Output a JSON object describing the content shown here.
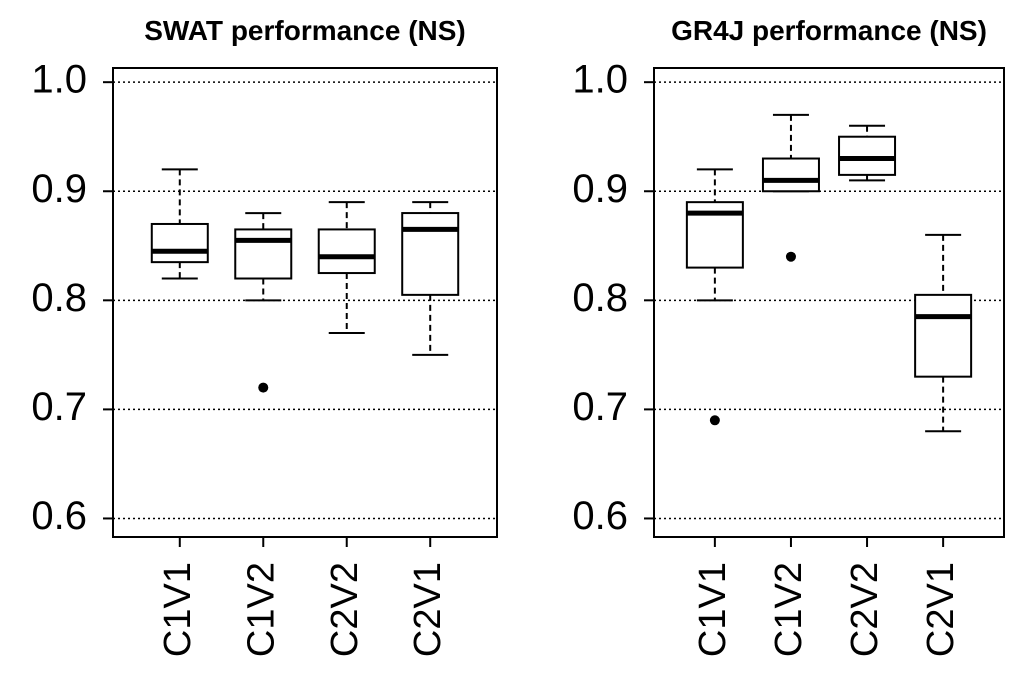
{
  "chart_data": [
    {
      "type": "box",
      "title": "SWAT performance (NS)",
      "categories": [
        "C1V1",
        "C1V2",
        "C2V2",
        "C2V1"
      ],
      "whisker_low": [
        0.82,
        0.8,
        0.77,
        0.75
      ],
      "q1": [
        0.835,
        0.82,
        0.825,
        0.805
      ],
      "median": [
        0.845,
        0.855,
        0.84,
        0.865
      ],
      "q3": [
        0.87,
        0.865,
        0.865,
        0.88
      ],
      "whisker_high": [
        0.92,
        0.88,
        0.89,
        0.89
      ],
      "outliers": [
        [],
        [
          0.72
        ],
        [],
        []
      ],
      "color": "#000000",
      "ylim": [
        0.583,
        1.013
      ],
      "yticks": [
        {
          "value": 0.6,
          "label": "0.6"
        },
        {
          "value": 0.7,
          "label": "0.7"
        },
        {
          "value": 0.8,
          "label": "0.8"
        },
        {
          "value": 0.9,
          "label": "0.9"
        },
        {
          "value": 1.0,
          "label": "1.0"
        }
      ],
      "grid": true
    },
    {
      "type": "box",
      "title": "GR4J performance (NS)",
      "categories": [
        "C1V1",
        "C1V2",
        "C2V2",
        "C2V1"
      ],
      "whisker_low": [
        0.8,
        0.9,
        0.91,
        0.68
      ],
      "q1": [
        0.83,
        0.9,
        0.915,
        0.73
      ],
      "median": [
        0.88,
        0.91,
        0.93,
        0.785
      ],
      "q3": [
        0.89,
        0.93,
        0.95,
        0.805
      ],
      "whisker_high": [
        0.92,
        0.97,
        0.96,
        0.86
      ],
      "outliers": [
        [
          0.69
        ],
        [
          0.84
        ],
        [],
        []
      ],
      "color": "#000000",
      "ylim": [
        0.583,
        1.013
      ],
      "yticks": [
        {
          "value": 0.6,
          "label": "0.6"
        },
        {
          "value": 0.7,
          "label": "0.7"
        },
        {
          "value": 0.8,
          "label": "0.8"
        },
        {
          "value": 0.9,
          "label": "0.9"
        },
        {
          "value": 1.0,
          "label": "1.0"
        }
      ],
      "grid": true
    }
  ]
}
